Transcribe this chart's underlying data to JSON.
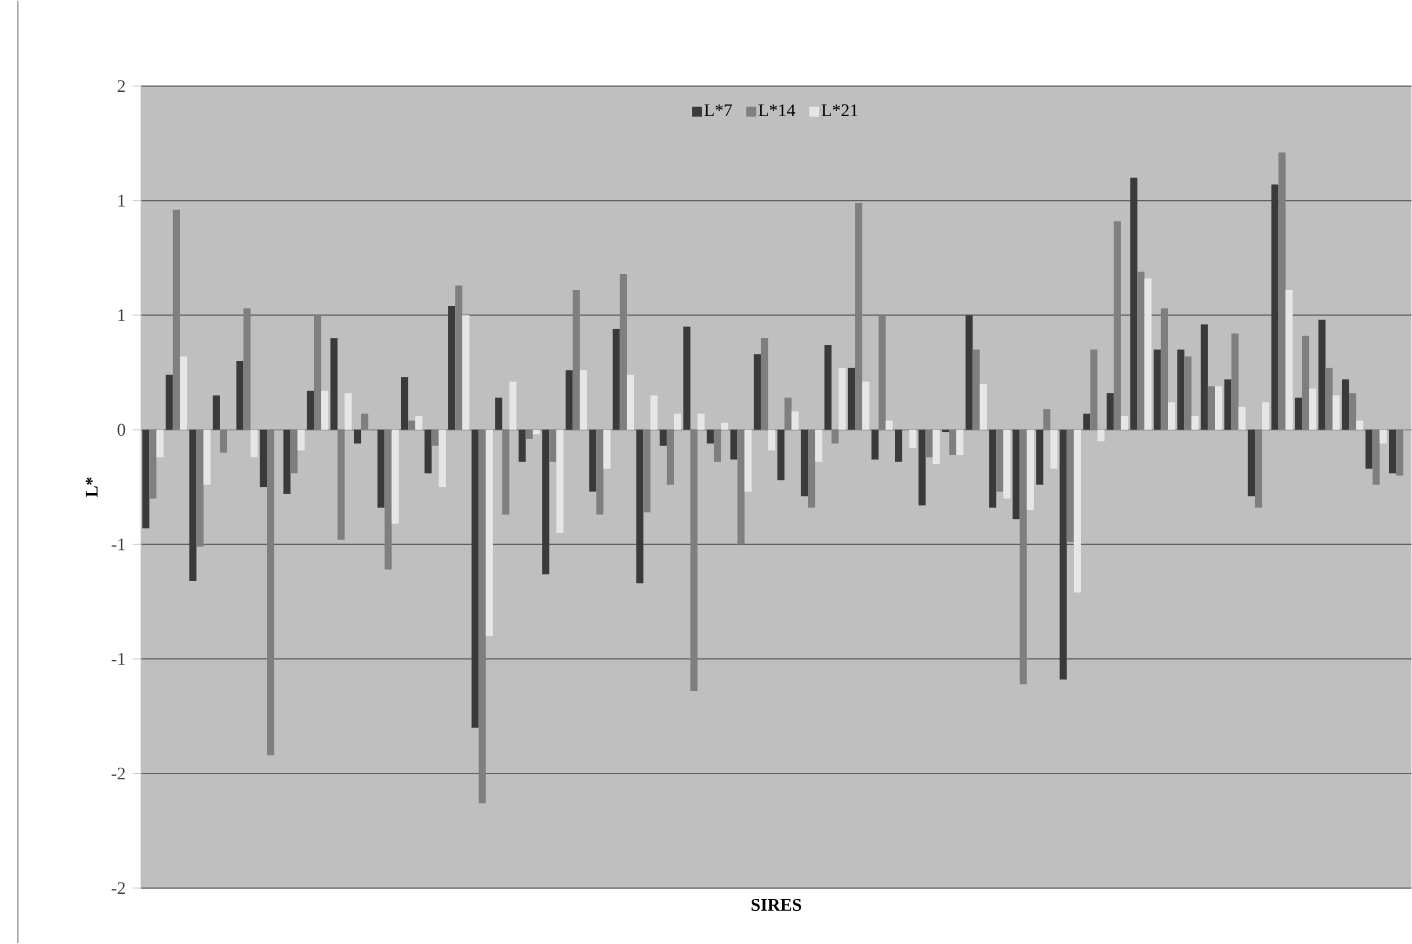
{
  "chart_data": {
    "type": "bar",
    "xlabel": "SIRES",
    "ylabel": "L*",
    "categories": [
      null,
      null,
      null,
      null,
      null,
      null,
      null,
      null,
      null,
      null,
      null,
      null,
      null,
      null,
      null,
      null,
      null,
      null,
      null,
      null,
      null,
      null,
      null,
      null,
      null,
      null,
      null,
      null,
      null,
      null,
      null,
      null,
      null,
      null,
      null,
      null,
      null,
      null,
      null,
      null,
      null,
      null,
      null,
      null,
      null,
      null,
      null,
      null,
      null,
      null,
      null,
      null,
      null,
      null
    ],
    "series": [
      {
        "name": "L*7",
        "color": "#3a3a3a",
        "values": [
          -0.43,
          0.24,
          -0.66,
          0.15,
          0.3,
          -0.25,
          -0.28,
          0.17,
          0.4,
          -0.06,
          -0.34,
          0.23,
          -0.19,
          0.54,
          -1.3,
          0.14,
          -0.14,
          -0.63,
          0.26,
          -0.27,
          0.44,
          -0.67,
          -0.07,
          0.45,
          -0.06,
          -0.13,
          0.33,
          -0.22,
          -0.29,
          0.37,
          0.27,
          -0.13,
          -0.14,
          -0.33,
          -0.01,
          0.5,
          -0.34,
          -0.39,
          -0.24,
          -1.09,
          0.07,
          0.16,
          1.1,
          0.35,
          0.35,
          0.46,
          0.22,
          -0.29,
          1.07,
          0.14,
          0.48,
          0.22,
          -0.17,
          -0.19
        ]
      },
      {
        "name": "L*14",
        "color": "#7f7f7f",
        "values": [
          -0.3,
          0.96,
          -0.51,
          -0.1,
          0.53,
          -1.42,
          -0.19,
          0.5,
          -0.48,
          0.07,
          -0.61,
          0.04,
          -0.07,
          0.63,
          -1.63,
          -0.37,
          -0.04,
          -0.14,
          0.61,
          -0.37,
          0.68,
          -0.36,
          -0.24,
          -1.14,
          -0.14,
          -0.5,
          0.4,
          0.14,
          -0.34,
          -0.06,
          0.99,
          0.5,
          null,
          -0.12,
          -0.11,
          0.35,
          -0.27,
          -1.11,
          0.09,
          -0.49,
          0.35,
          0.91,
          0.69,
          0.53,
          0.32,
          0.19,
          0.42,
          -0.34,
          1.21,
          0.41,
          0.27,
          0.16,
          -0.24,
          -0.2
        ]
      },
      {
        "name": "L*21",
        "color": "#e6e6e6",
        "values": [
          -0.12,
          0.32,
          -0.24,
          null,
          -0.12,
          null,
          -0.09,
          0.17,
          0.16,
          null,
          -0.41,
          0.06,
          -0.25,
          0.5,
          -0.9,
          0.21,
          -0.02,
          -0.45,
          0.26,
          -0.17,
          0.24,
          0.15,
          0.07,
          0.07,
          0.03,
          -0.27,
          -0.09,
          0.08,
          -0.14,
          0.27,
          0.21,
          0.04,
          -0.08,
          -0.15,
          -0.11,
          0.2,
          -0.3,
          -0.35,
          -0.17,
          -0.71,
          -0.05,
          0.06,
          0.66,
          0.12,
          0.06,
          0.19,
          0.1,
          0.12,
          0.61,
          0.18,
          0.15,
          0.04,
          -0.06,
          null
        ]
      }
    ],
    "ylim": [
      -2,
      1.5
    ],
    "yticks": [
      {
        "value": 1.5,
        "label": "2"
      },
      {
        "value": 1,
        "label": "1"
      },
      {
        "value": 0.5,
        "label": "1"
      },
      {
        "value": 0,
        "label": "0"
      },
      {
        "value": -0.5,
        "label": "-1"
      },
      {
        "value": -1,
        "label": "-1"
      },
      {
        "value": -1.5,
        "label": "-2"
      },
      {
        "value": -2,
        "label": "-2"
      }
    ],
    "grid": "y",
    "legend": "top"
  }
}
